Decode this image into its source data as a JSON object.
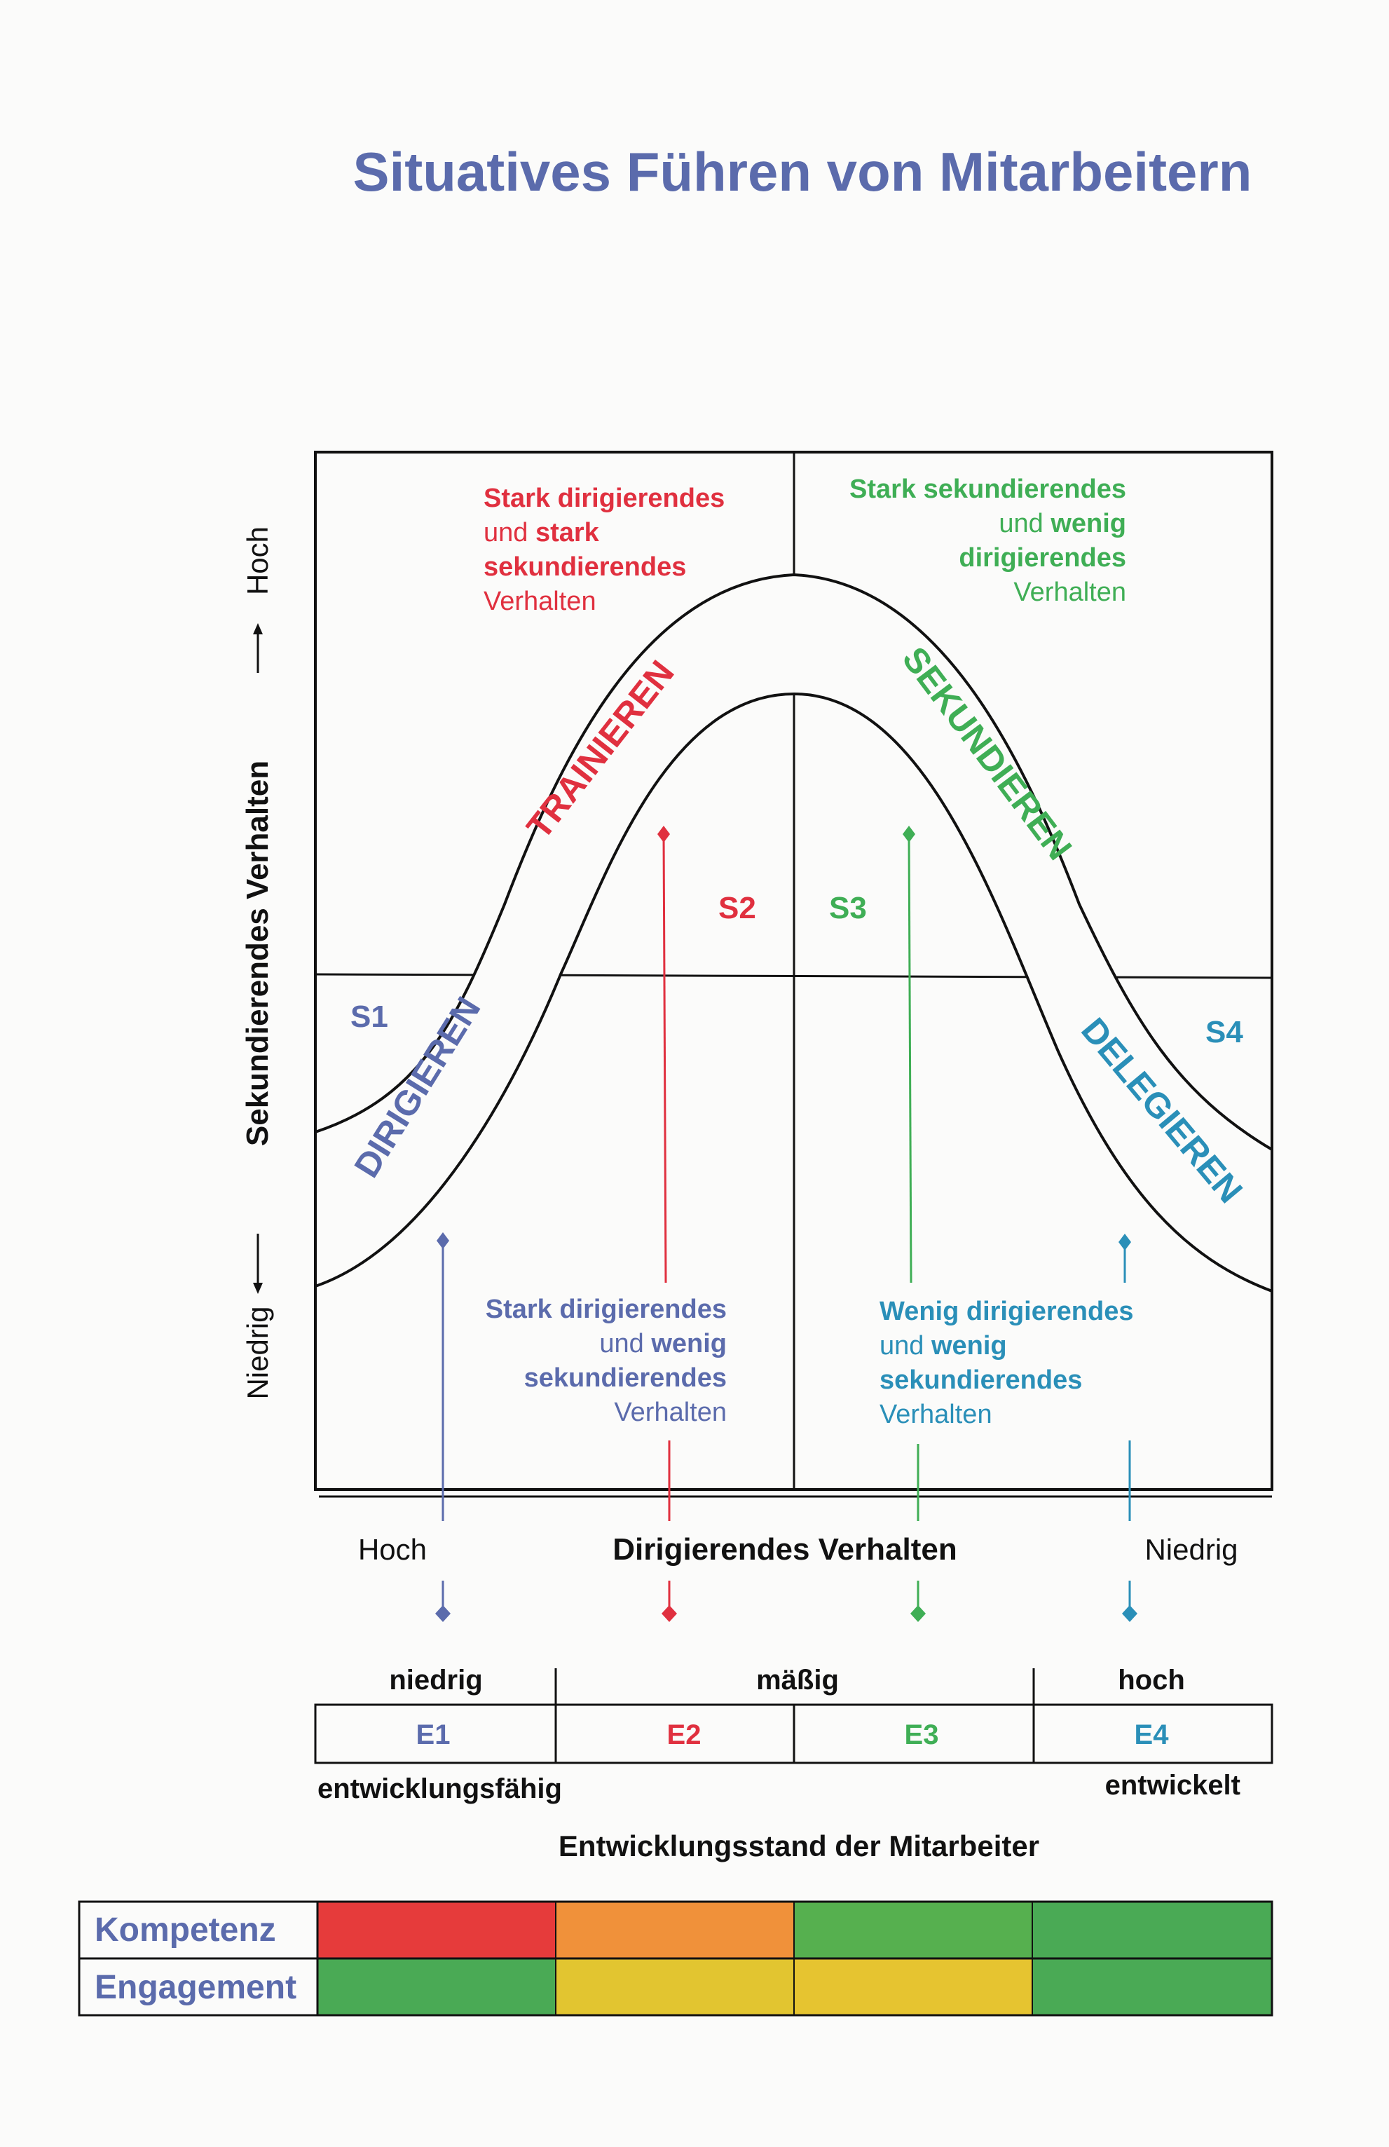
{
  "title": "Situatives Führen von Mitarbeitern",
  "y_axis": {
    "label": "Sekundierendes Verhalten",
    "low": "Niedrig",
    "high": "Hoch"
  },
  "x_axis": {
    "label": "Dirigierendes Verhalten",
    "left": "Hoch",
    "right": "Niedrig"
  },
  "quadrant_texts": {
    "s2": {
      "line1": "Stark dirigierendes",
      "line2_a": "und ",
      "line2_b": "stark",
      "line3": "sekundierendes",
      "line4": "Verhalten"
    },
    "s3": {
      "line1": "Stark sekundierendes",
      "line2_a": "und ",
      "line2_b": "wenig",
      "line3": "dirigierendes",
      "line4": "Verhalten"
    },
    "s1": {
      "line1": "Stark dirigierendes",
      "line2_a": "und ",
      "line2_b": "wenig",
      "line3": "sekundierendes",
      "line4": "Verhalten"
    },
    "s4": {
      "line1": "Wenig dirigierendes",
      "line2_a": "und ",
      "line2_b": "wenig",
      "line3": "sekundierendes",
      "line4": "Verhalten"
    }
  },
  "styles": [
    {
      "id": "S1",
      "name": "DIRIGIEREN",
      "color": "#5b6bac"
    },
    {
      "id": "S2",
      "name": "TRAINIEREN",
      "color": "#e0303f"
    },
    {
      "id": "S3",
      "name": "SEKUNDIEREN",
      "color": "#3fae55"
    },
    {
      "id": "S4",
      "name": "DELEGIEREN",
      "color": "#2a8fb8"
    }
  ],
  "development": {
    "levels": [
      "niedrig",
      "mäßig",
      "hoch"
    ],
    "stages": [
      {
        "id": "E1",
        "color": "#5b6bac"
      },
      {
        "id": "E2",
        "color": "#e0303f"
      },
      {
        "id": "E3",
        "color": "#3fae55"
      },
      {
        "id": "E4",
        "color": "#2a8fb8"
      }
    ],
    "left_label": "entwicklungsfähig",
    "right_label": "entwickelt",
    "caption": "Entwicklungsstand der Mitarbeiter"
  },
  "legend": {
    "rows": [
      {
        "label": "Kompetenz",
        "colors": [
          "#e63b3b",
          "#f0913a",
          "#56b04f",
          "#4aaa55"
        ]
      },
      {
        "label": "Engagement",
        "colors": [
          "#4aaa55",
          "#e2c530",
          "#e6c430",
          "#4aaa55"
        ]
      }
    ]
  }
}
